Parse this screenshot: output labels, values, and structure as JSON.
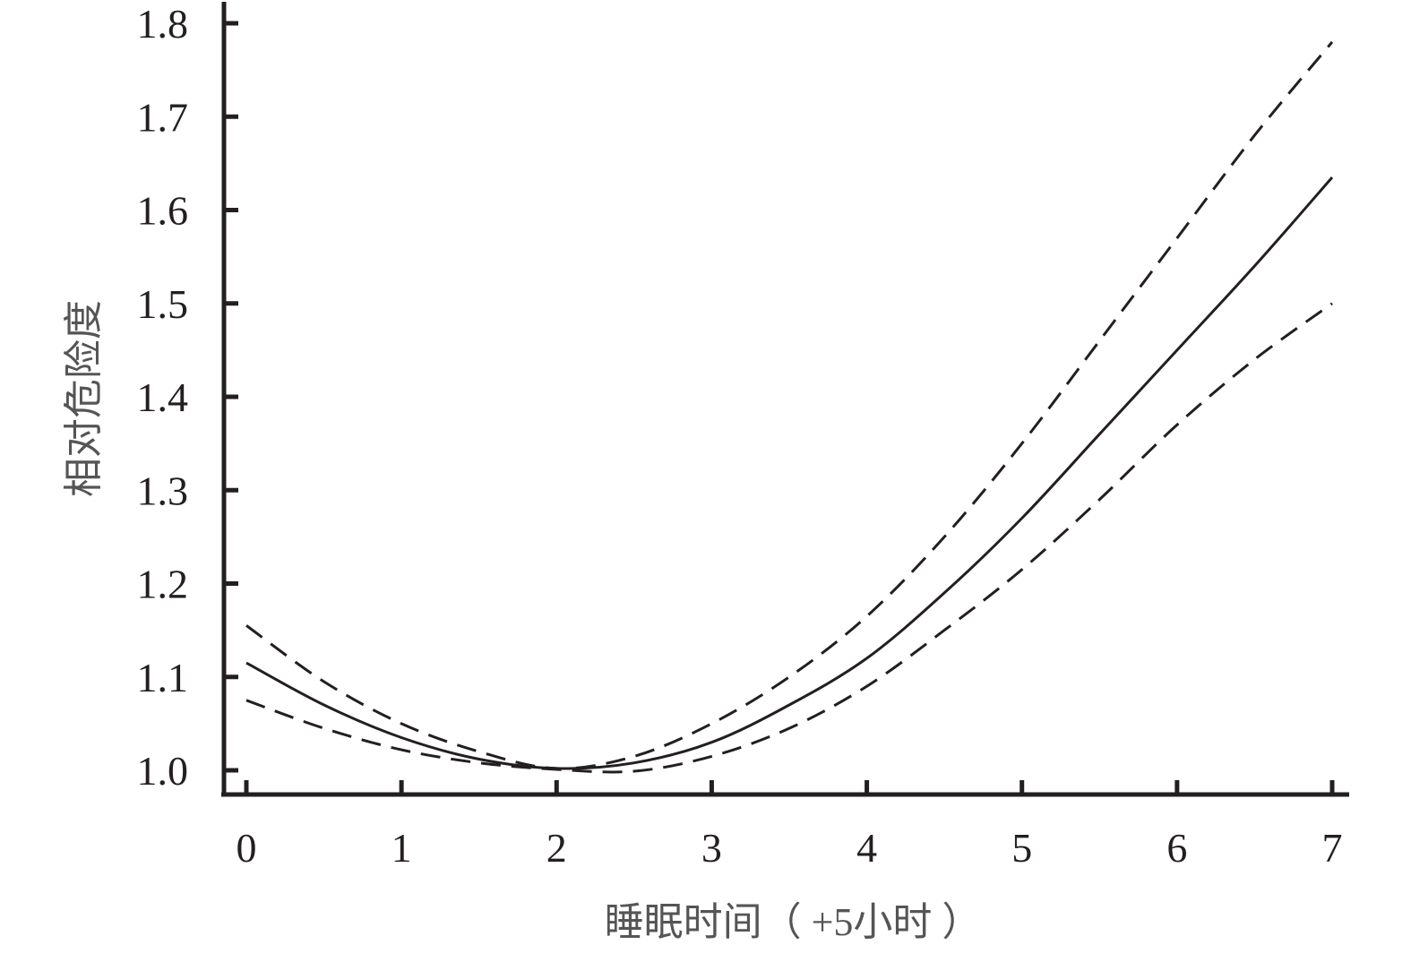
{
  "chart_data": {
    "type": "line",
    "title": "",
    "xlabel": "睡眠时间（ +5小时 ）",
    "ylabel": "相对危险度",
    "xlim": [
      0,
      7
    ],
    "ylim": [
      1.0,
      1.8
    ],
    "x_ticks": [
      "0",
      "1",
      "2",
      "3",
      "4",
      "5",
      "6",
      "7"
    ],
    "y_ticks": [
      "1.0",
      "1.1",
      "1.2",
      "1.3",
      "1.4",
      "1.5",
      "1.6",
      "1.7",
      "1.8"
    ],
    "grid": false,
    "legend": "none",
    "colors": {
      "line": "#231f20"
    },
    "series": [
      {
        "style": "solid",
        "x": [
          0,
          0.5,
          1,
          1.5,
          2,
          2.5,
          3,
          3.5,
          4,
          4.5,
          5,
          5.5,
          6,
          6.5,
          7
        ],
        "values": [
          1.115,
          1.07,
          1.035,
          1.012,
          1.002,
          1.008,
          1.03,
          1.07,
          1.12,
          1.19,
          1.27,
          1.36,
          1.45,
          1.54,
          1.635
        ]
      },
      {
        "style": "dashed",
        "x": [
          0,
          0.5,
          1,
          1.5,
          2,
          2.5,
          3,
          3.5,
          4,
          4.5,
          5,
          5.5,
          6,
          6.5,
          7
        ],
        "values": [
          1.155,
          1.095,
          1.05,
          1.02,
          1.002,
          1.015,
          1.05,
          1.1,
          1.165,
          1.25,
          1.35,
          1.46,
          1.57,
          1.68,
          1.78
        ]
      },
      {
        "style": "dashed",
        "x": [
          0,
          0.5,
          1,
          1.5,
          2,
          2.5,
          3,
          3.5,
          4,
          4.5,
          5,
          5.5,
          6,
          6.5,
          7
        ],
        "values": [
          1.075,
          1.045,
          1.022,
          1.008,
          1.001,
          0.999,
          1.015,
          1.045,
          1.09,
          1.15,
          1.215,
          1.29,
          1.37,
          1.44,
          1.5
        ]
      }
    ]
  }
}
